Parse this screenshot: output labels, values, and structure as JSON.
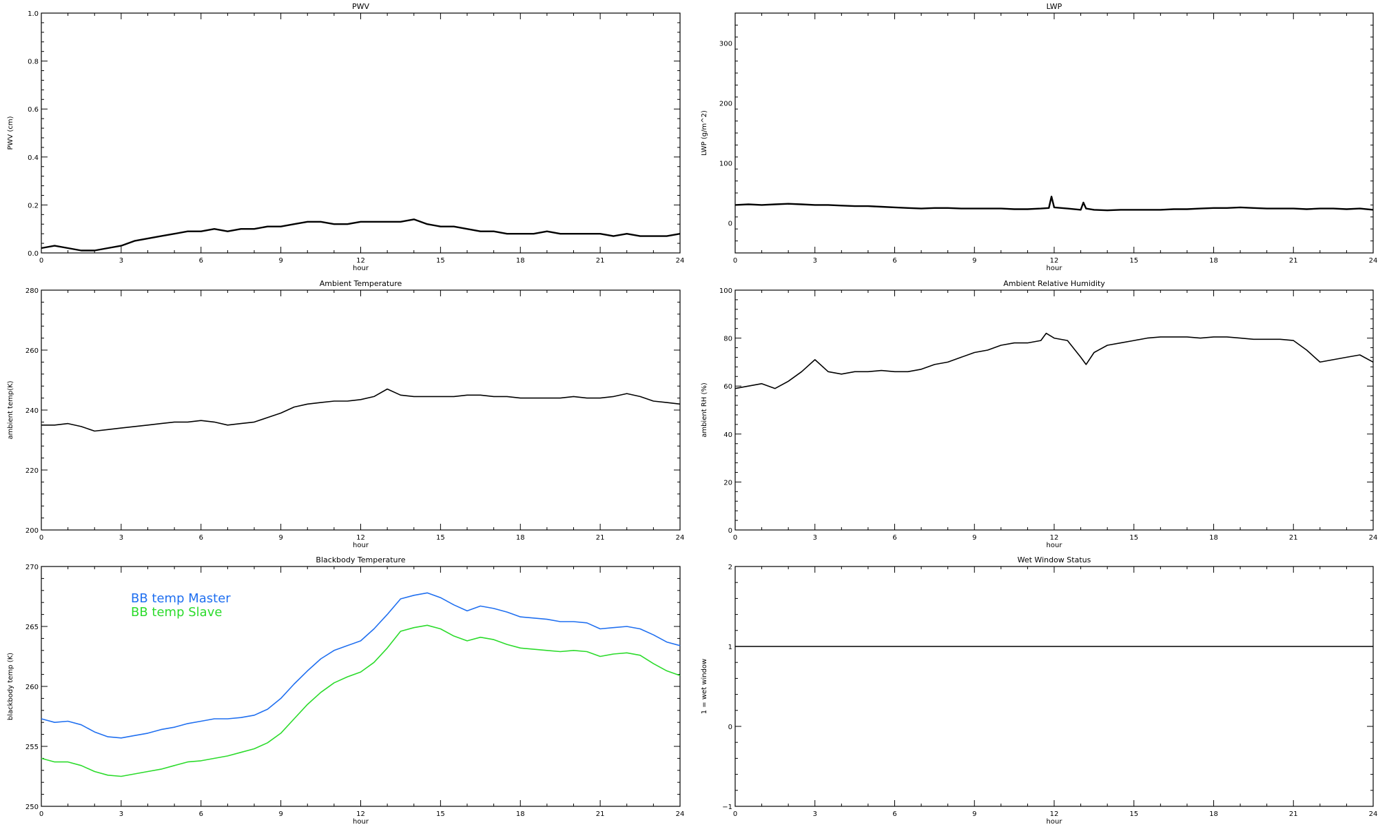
{
  "chart_data": [
    {
      "type": "line",
      "title": "PWV",
      "xlabel": "hour",
      "ylabel": "PWV (cm)",
      "xlim": [
        0,
        24
      ],
      "ylim": [
        0,
        1.0
      ],
      "xticks": [
        0,
        3,
        6,
        9,
        12,
        15,
        18,
        21,
        24
      ],
      "yticks": [
        0.0,
        0.2,
        0.4,
        0.6,
        0.8,
        1.0
      ],
      "ytick_labels": [
        "0.0",
        "0.2",
        "0.4",
        "0.6",
        "0.8",
        "1.0"
      ],
      "grid": false,
      "series": [
        {
          "color": "#000000",
          "x": [
            0,
            0.5,
            1,
            1.5,
            2,
            2.5,
            3,
            3.5,
            4,
            4.5,
            5,
            5.5,
            6,
            6.5,
            7,
            7.5,
            8,
            8.5,
            9,
            9.5,
            10,
            10.5,
            11,
            11.5,
            12,
            12.5,
            13,
            13.5,
            14,
            14.5,
            15,
            15.5,
            16,
            16.5,
            17,
            17.5,
            18,
            18.5,
            19,
            19.5,
            20,
            20.5,
            21,
            21.5,
            22,
            22.5,
            23,
            23.5,
            24
          ],
          "y": [
            0.02,
            0.03,
            0.02,
            0.01,
            0.01,
            0.02,
            0.03,
            0.05,
            0.06,
            0.07,
            0.08,
            0.09,
            0.09,
            0.1,
            0.09,
            0.1,
            0.1,
            0.11,
            0.11,
            0.12,
            0.13,
            0.13,
            0.12,
            0.12,
            0.13,
            0.13,
            0.13,
            0.13,
            0.14,
            0.12,
            0.11,
            0.11,
            0.1,
            0.09,
            0.09,
            0.08,
            0.08,
            0.08,
            0.09,
            0.08,
            0.08,
            0.08,
            0.08,
            0.07,
            0.08,
            0.07,
            0.07,
            0.07,
            0.08
          ]
        }
      ]
    },
    {
      "type": "line",
      "title": "LWP",
      "xlabel": "hour",
      "ylabel": "LWP (g/m^2)",
      "xlim": [
        0,
        24
      ],
      "ylim": [
        -50,
        350
      ],
      "xticks": [
        0,
        3,
        6,
        9,
        12,
        15,
        18,
        21,
        24
      ],
      "yticks": [
        0,
        100,
        200,
        300
      ],
      "ytick_labels": [
        "0",
        "100",
        "200",
        "300"
      ],
      "grid": false,
      "series": [
        {
          "color": "#000000",
          "x": [
            0,
            0.5,
            1,
            1.5,
            2,
            2.5,
            3,
            3.5,
            4,
            4.5,
            5,
            5.5,
            6,
            6.5,
            7,
            7.5,
            8,
            8.5,
            9,
            9.5,
            10,
            10.5,
            11,
            11.5,
            11.8,
            11.9,
            12,
            12.5,
            13,
            13.1,
            13.2,
            13.5,
            14,
            14.5,
            15,
            15.5,
            16,
            16.5,
            17,
            17.5,
            18,
            18.5,
            19,
            19.5,
            20,
            20.5,
            21,
            21.5,
            22,
            22.5,
            23,
            23.5,
            24
          ],
          "y": [
            30,
            31,
            30,
            31,
            32,
            31,
            30,
            30,
            29,
            28,
            28,
            27,
            26,
            25,
            24,
            25,
            25,
            24,
            24,
            24,
            24,
            23,
            23,
            24,
            25,
            44,
            26,
            24,
            22,
            34,
            24,
            22,
            21,
            22,
            22,
            22,
            22,
            23,
            23,
            24,
            25,
            25,
            26,
            25,
            24,
            24,
            24,
            23,
            24,
            24,
            23,
            24,
            22
          ]
        }
      ]
    },
    {
      "type": "line",
      "title": "Ambient Temperature",
      "xlabel": "hour",
      "ylabel": "ambient temp(K)",
      "xlim": [
        0,
        24
      ],
      "ylim": [
        200,
        280
      ],
      "xticks": [
        0,
        3,
        6,
        9,
        12,
        15,
        18,
        21,
        24
      ],
      "yticks": [
        200,
        220,
        240,
        260,
        280
      ],
      "ytick_labels": [
        "200",
        "220",
        "240",
        "260",
        "280"
      ],
      "grid": false,
      "series": [
        {
          "color": "#000000",
          "x": [
            0,
            0.5,
            1,
            1.5,
            2,
            2.5,
            3,
            3.5,
            4,
            4.5,
            5,
            5.5,
            6,
            6.5,
            7,
            7.5,
            8,
            8.5,
            9,
            9.5,
            10,
            10.5,
            11,
            11.5,
            12,
            12.5,
            13,
            13.5,
            14,
            14.5,
            15,
            15.5,
            16,
            16.5,
            17,
            17.5,
            18,
            18.5,
            19,
            19.5,
            20,
            20.5,
            21,
            21.5,
            22,
            22.5,
            23,
            23.5,
            24
          ],
          "y": [
            235,
            235,
            235.5,
            234.5,
            233,
            233.5,
            234,
            234.5,
            235,
            235.5,
            236,
            236,
            236.5,
            236,
            235,
            235.5,
            236,
            237.5,
            239,
            241,
            242,
            242.5,
            243,
            243,
            243.5,
            244.5,
            247,
            245,
            244.5,
            244.5,
            244.5,
            244.5,
            245,
            245,
            244.5,
            244.5,
            244,
            244,
            244,
            244,
            244.5,
            244,
            244,
            244.5,
            245.5,
            244.5,
            243,
            242.5,
            242
          ]
        }
      ]
    },
    {
      "type": "line",
      "title": "Ambient Relative Humidity",
      "xlabel": "hour",
      "ylabel": "ambient RH (%)",
      "xlim": [
        0,
        24
      ],
      "ylim": [
        0,
        100
      ],
      "xticks": [
        0,
        3,
        6,
        9,
        12,
        15,
        18,
        21,
        24
      ],
      "yticks": [
        0,
        20,
        40,
        60,
        80,
        100
      ],
      "ytick_labels": [
        "0",
        "20",
        "40",
        "60",
        "80",
        "100"
      ],
      "grid": false,
      "series": [
        {
          "color": "#000000",
          "x": [
            0,
            0.5,
            1,
            1.5,
            2,
            2.5,
            3,
            3.5,
            4,
            4.5,
            5,
            5.5,
            6,
            6.5,
            7,
            7.5,
            8,
            8.5,
            9,
            9.5,
            10,
            10.5,
            11,
            11.5,
            11.7,
            12,
            12.5,
            13,
            13.2,
            13.5,
            14,
            14.5,
            15,
            15.5,
            16,
            16.5,
            17,
            17.5,
            18,
            18.5,
            19,
            19.5,
            20,
            20.5,
            21,
            21.5,
            22,
            22.5,
            23,
            23.5,
            24
          ],
          "y": [
            59,
            60,
            61,
            59,
            62,
            66,
            71,
            66,
            65,
            66,
            66,
            66.5,
            66,
            66,
            67,
            69,
            70,
            72,
            74,
            75,
            77,
            78,
            78,
            79,
            82,
            80,
            79,
            72,
            69,
            74,
            77,
            78,
            79,
            80,
            80.5,
            80.5,
            80.5,
            80,
            80.5,
            80.5,
            80,
            79.5,
            79.5,
            79.5,
            79,
            75,
            70,
            71,
            72,
            73,
            70
          ]
        }
      ]
    },
    {
      "type": "line",
      "title": "Blackbody Temperature",
      "xlabel": "hour",
      "ylabel": "blackbody temp (K)",
      "xlim": [
        0,
        24
      ],
      "ylim": [
        250,
        270
      ],
      "xticks": [
        0,
        3,
        6,
        9,
        12,
        15,
        18,
        21,
        24
      ],
      "yticks": [
        250,
        255,
        260,
        265,
        270
      ],
      "ytick_labels": [
        "250",
        "255",
        "260",
        "265",
        "270"
      ],
      "grid": false,
      "legend": "top-left",
      "series": [
        {
          "name": "BB temp Master",
          "color": "#1f6ff0",
          "x": [
            0,
            0.5,
            1,
            1.5,
            2,
            2.5,
            3,
            3.5,
            4,
            4.5,
            5,
            5.5,
            6,
            6.5,
            7,
            7.5,
            8,
            8.5,
            9,
            9.5,
            10,
            10.5,
            11,
            11.5,
            12,
            12.5,
            13,
            13.5,
            14,
            14.5,
            15,
            15.5,
            16,
            16.5,
            17,
            17.5,
            18,
            18.5,
            19,
            19.5,
            20,
            20.5,
            21,
            21.5,
            22,
            22.5,
            23,
            23.5,
            24
          ],
          "y": [
            257.3,
            257.0,
            257.1,
            256.8,
            256.2,
            255.8,
            255.7,
            255.9,
            256.1,
            256.4,
            256.6,
            256.9,
            257.1,
            257.3,
            257.3,
            257.4,
            257.6,
            258.1,
            259.0,
            260.2,
            261.3,
            262.3,
            263.0,
            263.4,
            263.8,
            264.8,
            266.0,
            267.3,
            267.6,
            267.8,
            267.4,
            266.8,
            266.3,
            266.7,
            266.5,
            266.2,
            265.8,
            265.7,
            265.6,
            265.4,
            265.4,
            265.3,
            264.8,
            264.9,
            265.0,
            264.8,
            264.3,
            263.7,
            263.4
          ]
        },
        {
          "name": "BB temp Slave",
          "color": "#2bdb2b",
          "x": [
            0,
            0.5,
            1,
            1.5,
            2,
            2.5,
            3,
            3.5,
            4,
            4.5,
            5,
            5.5,
            6,
            6.5,
            7,
            7.5,
            8,
            8.5,
            9,
            9.5,
            10,
            10.5,
            11,
            11.5,
            12,
            12.5,
            13,
            13.5,
            14,
            14.5,
            15,
            15.5,
            16,
            16.5,
            17,
            17.5,
            18,
            18.5,
            19,
            19.5,
            20,
            20.5,
            21,
            21.5,
            22,
            22.5,
            23,
            23.5,
            24
          ],
          "y": [
            254.0,
            253.7,
            253.7,
            253.4,
            252.9,
            252.6,
            252.5,
            252.7,
            252.9,
            253.1,
            253.4,
            253.7,
            253.8,
            254.0,
            254.2,
            254.5,
            254.8,
            255.3,
            256.1,
            257.3,
            258.5,
            259.5,
            260.3,
            260.8,
            261.2,
            262.0,
            263.2,
            264.6,
            264.9,
            265.1,
            264.8,
            264.2,
            263.8,
            264.1,
            263.9,
            263.5,
            263.2,
            263.1,
            263.0,
            262.9,
            263.0,
            262.9,
            262.5,
            262.7,
            262.8,
            262.6,
            261.9,
            261.3,
            260.9
          ]
        }
      ]
    },
    {
      "type": "line",
      "title": "Wet Window Status",
      "xlabel": "hour",
      "ylabel": "1 = wet window",
      "xlim": [
        0,
        24
      ],
      "ylim": [
        -1,
        2
      ],
      "xticks": [
        0,
        3,
        6,
        9,
        12,
        15,
        18,
        21,
        24
      ],
      "yticks": [
        -1,
        0,
        1,
        2
      ],
      "ytick_labels": [
        "−1",
        "0",
        "1",
        "2"
      ],
      "grid": false,
      "series": [
        {
          "color": "#000000",
          "x": [
            0,
            24
          ],
          "y": [
            1,
            1
          ]
        }
      ]
    }
  ]
}
